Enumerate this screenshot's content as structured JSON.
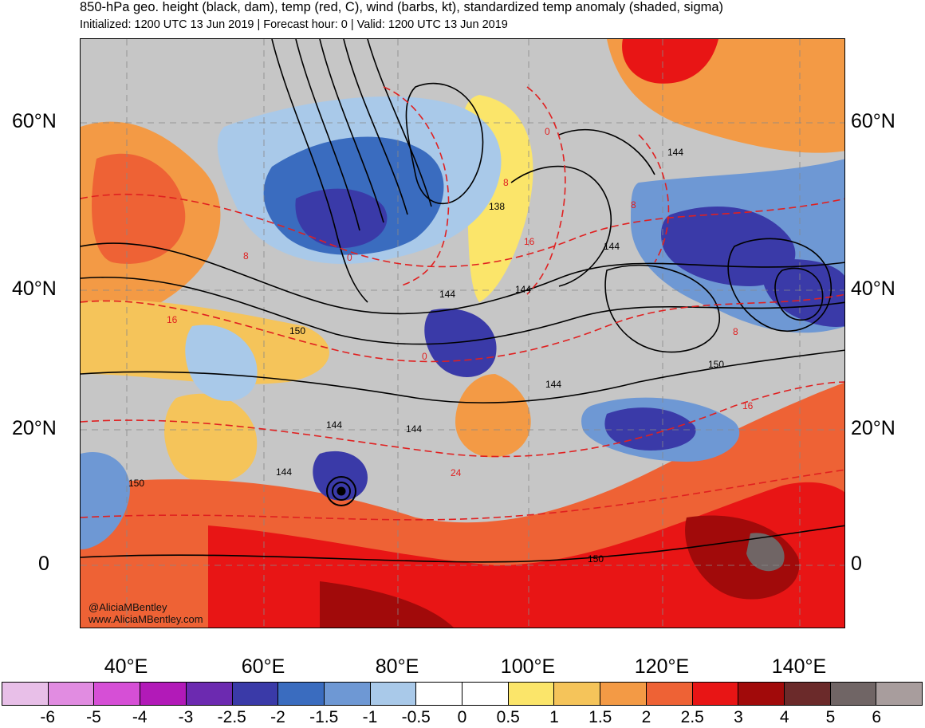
{
  "header": {
    "title": "850-hPa geo. height (black, dam), temp (red, C), wind (barbs, kt), standardized temp anomaly (shaded, sigma)",
    "subtitle": "Initialized: 1200 UTC 13 Jun 2019 | Forecast hour: 0 | Valid: 1200 UTC 13 Jun 2019"
  },
  "axes": {
    "lat_labels_left": [
      "60°N",
      "40°N",
      "20°N",
      "0"
    ],
    "lat_labels_right": [
      "60°N",
      "40°N",
      "20°N",
      "0"
    ],
    "lon_labels": [
      "40°E",
      "60°E",
      "80°E",
      "100°E",
      "120°E",
      "140°E"
    ]
  },
  "contour_labels": {
    "height": [
      "144",
      "138",
      "144",
      "144",
      "150",
      "144",
      "150",
      "144",
      "144",
      "144",
      "144",
      "150",
      "150"
    ],
    "temp": [
      "0",
      "0",
      "8",
      "8",
      "8",
      "16",
      "16",
      "16",
      "24",
      "8",
      "0"
    ]
  },
  "credit": {
    "twitter": "@AliciaMBentley",
    "website": "www.AliciaMBentley.com"
  },
  "colorbar": {
    "labels": [
      "-6",
      "-5",
      "-4",
      "-3",
      "-2.5",
      "-2",
      "-1.5",
      "-1",
      "-0.5",
      "0",
      "0.5",
      "1",
      "1.5",
      "2",
      "2.5",
      "3",
      "4",
      "5",
      "6"
    ],
    "colors": [
      "#e8bfe8",
      "#e18ce1",
      "#d64fd6",
      "#b21ab8",
      "#6c2ab0",
      "#3a3aa8",
      "#3a6cbf",
      "#6e98d4",
      "#a9c9e9",
      "#ffffff",
      "#ffffff",
      "#fbe56a",
      "#f5c45a",
      "#f39a45",
      "#ee6235",
      "#e81515",
      "#a10a0a",
      "#6b2a2a",
      "#706565",
      "#a89d9d"
    ]
  }
}
